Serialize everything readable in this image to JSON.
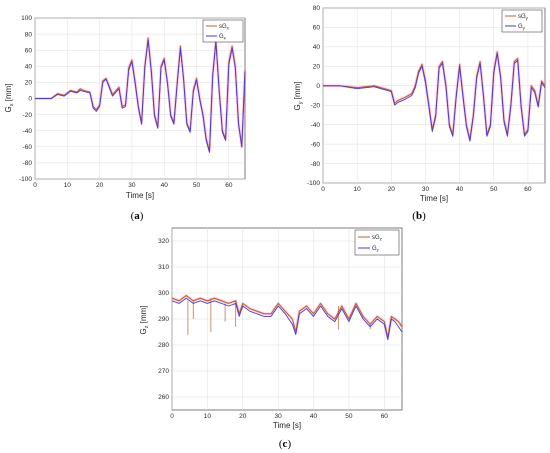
{
  "colors": {
    "measured": "#c0622a",
    "reference": "#4b3bd6",
    "noise": "#ff44cc",
    "grid": "#dcdcdc",
    "axis": "#262626"
  },
  "chart_data": [
    {
      "type": "line",
      "panel": "(a)",
      "panel_open": "(",
      "panel_letter": "a",
      "panel_close": ")",
      "xlabel": "Time [s]",
      "ylabel": {
        "main": "G",
        "sub": "x",
        "unit": " [mm]"
      },
      "xlim": [
        0,
        65
      ],
      "ylim": [
        -100,
        100
      ],
      "xticks": [
        0,
        10,
        20,
        30,
        40,
        50,
        60
      ],
      "yticks": [
        -100,
        -80,
        -60,
        -40,
        -20,
        0,
        20,
        40,
        60,
        80,
        100
      ],
      "grid": true,
      "legend_position": "top-right",
      "legend": [
        {
          "main": "sG",
          "sub": "x"
        },
        {
          "main": "G",
          "sub": "x"
        }
      ],
      "series": [
        {
          "name": "sGx",
          "x": [
            0,
            3,
            5,
            7,
            9,
            11,
            13,
            14,
            15,
            17,
            18,
            19,
            20,
            21,
            22,
            24,
            26,
            27,
            28,
            29,
            30,
            31,
            32,
            33,
            34,
            35,
            36,
            37,
            38,
            39,
            40,
            41,
            42,
            43,
            44,
            45,
            46,
            47,
            48,
            49,
            50,
            51,
            52,
            53,
            54,
            55,
            56,
            57,
            58,
            59,
            60,
            61,
            62,
            63,
            64,
            65
          ],
          "y": [
            0,
            0,
            0,
            6,
            4,
            10,
            8,
            12,
            10,
            8,
            -10,
            -14,
            -8,
            22,
            25,
            5,
            14,
            -10,
            -8,
            38,
            48,
            20,
            -10,
            -30,
            40,
            75,
            35,
            -20,
            -35,
            40,
            50,
            20,
            -20,
            -30,
            20,
            65,
            25,
            -30,
            -40,
            10,
            25,
            0,
            -20,
            -50,
            -65,
            30,
            72,
            10,
            -40,
            -50,
            45,
            65,
            40,
            -30,
            -60,
            35
          ]
        },
        {
          "name": "Gx",
          "x": [
            0,
            3,
            5,
            7,
            9,
            11,
            13,
            14,
            15,
            17,
            18,
            19,
            20,
            21,
            22,
            24,
            26,
            27,
            28,
            29,
            30,
            31,
            32,
            33,
            34,
            35,
            36,
            37,
            38,
            39,
            40,
            41,
            42,
            43,
            44,
            45,
            46,
            47,
            48,
            49,
            50,
            51,
            52,
            53,
            54,
            55,
            56,
            57,
            58,
            59,
            60,
            61,
            62,
            63,
            64,
            65
          ],
          "y": [
            0,
            0,
            0,
            5,
            3,
            9,
            7,
            10,
            9,
            7,
            -12,
            -16,
            -10,
            20,
            24,
            3,
            12,
            -12,
            -10,
            35,
            46,
            18,
            -12,
            -32,
            38,
            72,
            33,
            -22,
            -37,
            38,
            48,
            18,
            -22,
            -32,
            18,
            62,
            23,
            -32,
            -42,
            8,
            23,
            -2,
            -22,
            -52,
            -67,
            28,
            70,
            8,
            -42,
            -52,
            42,
            62,
            38,
            -32,
            -60,
            33
          ]
        }
      ]
    },
    {
      "type": "line",
      "panel": "(b)",
      "panel_open": "(",
      "panel_letter": "b",
      "panel_close": ")",
      "xlabel": "Time [s]",
      "ylabel": {
        "main": "G",
        "sub": "y",
        "unit": " [mm]"
      },
      "xlim": [
        0,
        65
      ],
      "ylim": [
        -100,
        80
      ],
      "xticks": [
        0,
        10,
        20,
        30,
        40,
        50,
        60
      ],
      "yticks": [
        -100,
        -80,
        -60,
        -40,
        -20,
        0,
        20,
        40,
        60,
        80
      ],
      "grid": true,
      "legend_position": "top-right",
      "legend": [
        {
          "main": "sG",
          "sub": "y"
        },
        {
          "main": "G",
          "sub": "y"
        }
      ],
      "series": [
        {
          "name": "sGy",
          "x": [
            0,
            5,
            10,
            15,
            18,
            20,
            21,
            22,
            24,
            26,
            27,
            28,
            29,
            30,
            31,
            32,
            33,
            34,
            35,
            36,
            37,
            38,
            39,
            40,
            41,
            42,
            43,
            44,
            45,
            46,
            47,
            48,
            49,
            50,
            51,
            52,
            53,
            54,
            55,
            56,
            57,
            58,
            59,
            60,
            61,
            62,
            63,
            64,
            65
          ],
          "y": [
            0,
            0,
            -2,
            0,
            -3,
            -5,
            -18,
            -15,
            -12,
            -8,
            0,
            15,
            22,
            5,
            -20,
            -45,
            -30,
            20,
            25,
            0,
            -40,
            -50,
            -10,
            22,
            -10,
            -40,
            -55,
            -30,
            10,
            25,
            -10,
            -50,
            -40,
            15,
            35,
            10,
            -35,
            -50,
            -20,
            25,
            28,
            -20,
            -50,
            -45,
            0,
            -5,
            -20,
            5,
            0
          ]
        },
        {
          "name": "Gy",
          "x": [
            0,
            5,
            10,
            15,
            18,
            20,
            21,
            22,
            24,
            26,
            27,
            28,
            29,
            30,
            31,
            32,
            33,
            34,
            35,
            36,
            37,
            38,
            39,
            40,
            41,
            42,
            43,
            44,
            45,
            46,
            47,
            48,
            49,
            50,
            51,
            52,
            53,
            54,
            55,
            56,
            57,
            58,
            59,
            60,
            61,
            62,
            63,
            64,
            65
          ],
          "y": [
            0,
            0,
            -3,
            -1,
            -4,
            -6,
            -20,
            -17,
            -14,
            -10,
            -2,
            13,
            20,
            3,
            -22,
            -47,
            -32,
            18,
            23,
            -2,
            -42,
            -52,
            -12,
            20,
            -12,
            -42,
            -57,
            -32,
            8,
            23,
            -12,
            -52,
            -42,
            13,
            33,
            8,
            -37,
            -52,
            -22,
            23,
            26,
            -22,
            -52,
            -47,
            -2,
            -7,
            -22,
            3,
            -2
          ]
        }
      ]
    },
    {
      "type": "line",
      "panel": "(c)",
      "panel_open": "(",
      "panel_letter": "c",
      "panel_close": ")",
      "xlabel": "Time [s]",
      "ylabel": {
        "main": "G",
        "sub": "z",
        "unit": " [mm]"
      },
      "xlim": [
        0,
        65
      ],
      "ylim": [
        255,
        325
      ],
      "xticks": [
        0,
        10,
        20,
        30,
        40,
        50,
        60
      ],
      "yticks": [
        260,
        270,
        280,
        290,
        300,
        310,
        320
      ],
      "grid": true,
      "legend_position": "top-right",
      "legend": [
        {
          "main": "sG",
          "sub": "z"
        },
        {
          "main": "G",
          "sub": "z"
        }
      ],
      "series": [
        {
          "name": "sGz",
          "x": [
            0,
            2,
            4,
            6,
            8,
            10,
            12,
            14,
            16,
            18,
            19,
            20,
            22,
            24,
            26,
            28,
            30,
            32,
            34,
            35,
            36,
            38,
            40,
            42,
            44,
            46,
            48,
            50,
            52,
            54,
            56,
            58,
            60,
            61,
            62,
            63,
            64,
            65
          ],
          "y": [
            298,
            297,
            299,
            297,
            298,
            297,
            298,
            297,
            296,
            297,
            292,
            296,
            294,
            293,
            292,
            292,
            296,
            293,
            290,
            285,
            293,
            295,
            292,
            296,
            292,
            290,
            295,
            290,
            296,
            291,
            288,
            291,
            289,
            283,
            291,
            290,
            289,
            287
          ],
          "spikes": [
            {
              "x": 4.5,
              "y": 284
            },
            {
              "x": 6,
              "y": 290
            },
            {
              "x": 11,
              "y": 285
            },
            {
              "x": 15,
              "y": 289
            },
            {
              "x": 18,
              "y": 287
            },
            {
              "x": 47,
              "y": 286
            },
            {
              "x": 56,
              "y": 286
            }
          ]
        },
        {
          "name": "Gz",
          "x": [
            0,
            2,
            4,
            6,
            8,
            10,
            12,
            14,
            16,
            18,
            19,
            20,
            22,
            24,
            26,
            28,
            30,
            32,
            34,
            35,
            36,
            38,
            40,
            42,
            44,
            46,
            48,
            50,
            52,
            54,
            56,
            58,
            60,
            61,
            62,
            63,
            64,
            65
          ],
          "y": [
            297,
            296,
            298,
            296,
            297,
            296,
            297,
            296,
            295,
            296,
            291,
            295,
            293,
            292,
            291,
            291,
            295,
            292,
            288,
            284,
            292,
            294,
            291,
            295,
            291,
            289,
            294,
            289,
            295,
            290,
            287,
            290,
            288,
            282,
            290,
            289,
            287,
            285
          ]
        }
      ]
    }
  ]
}
